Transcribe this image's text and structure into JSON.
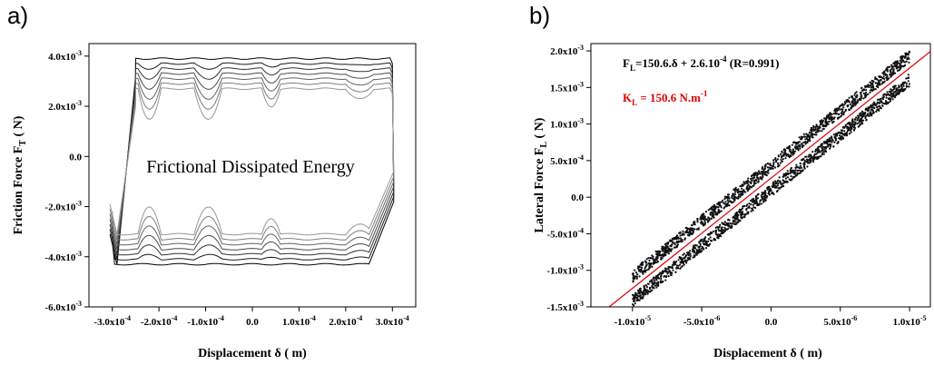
{
  "chart_data": [
    {
      "panel_label": "a)",
      "type": "line",
      "xlabel": "Displacement δ (   m)",
      "ylabel": "Friction Force F",
      "ylabel_sub": "T",
      "ylabel_suffix": " (    N)",
      "xlim": [
        -0.00035,
        0.00035
      ],
      "ylim": [
        -0.006,
        0.0045
      ],
      "x_ticks": [
        -0.0003,
        -0.0002,
        -0.0001,
        0,
        0.0001,
        0.0002,
        0.0003
      ],
      "x_tick_labels": [
        {
          "mant": "-3.0x10",
          "exp": "-4"
        },
        {
          "mant": "-2.0x10",
          "exp": "-4"
        },
        {
          "mant": "-1.0x10",
          "exp": "-4"
        },
        {
          "mant": "0.0",
          "exp": ""
        },
        {
          "mant": "1.0x10",
          "exp": "-4"
        },
        {
          "mant": "2.0x10",
          "exp": "-4"
        },
        {
          "mant": "3.0x10",
          "exp": "-4"
        }
      ],
      "y_ticks": [
        0.004,
        0.002,
        0,
        -0.002,
        -0.004,
        -0.006
      ],
      "y_tick_labels": [
        {
          "mant": "4.0x10",
          "exp": "-3"
        },
        {
          "mant": "2.0x10",
          "exp": "-3"
        },
        {
          "mant": "0.0",
          "exp": ""
        },
        {
          "mant": "-2.0x10",
          "exp": "-3"
        },
        {
          "mant": "-4.0x10",
          "exp": "-3"
        },
        {
          "mant": "-6.0x10",
          "exp": "-3"
        }
      ],
      "annotation": "Frictional Dissipated Energy",
      "loops": [
        {
          "upper_level": 0.0039,
          "lower_level": -0.0043
        },
        {
          "upper_level": 0.0037,
          "lower_level": -0.0041
        },
        {
          "upper_level": 0.0035,
          "lower_level": -0.0039
        },
        {
          "upper_level": 0.0033,
          "lower_level": -0.0037
        },
        {
          "upper_level": 0.0031,
          "lower_level": -0.0035
        },
        {
          "upper_level": 0.0029,
          "lower_level": -0.0033
        },
        {
          "upper_level": 0.0027,
          "lower_level": -0.0031
        }
      ]
    },
    {
      "panel_label": "b)",
      "type": "scatter",
      "xlabel": "Displacement δ (   m)",
      "ylabel": "Lateral Force F",
      "ylabel_sub": "L",
      "ylabel_suffix": " (    N)",
      "xlim": [
        -1.3e-05,
        1.15e-05
      ],
      "ylim": [
        -0.0015,
        0.0021
      ],
      "x_ticks": [
        -1e-05,
        -5e-06,
        0,
        5e-06,
        1e-05
      ],
      "x_tick_labels": [
        {
          "mant": "-1.0x10",
          "exp": "-5"
        },
        {
          "mant": "-5.0x10",
          "exp": "-6"
        },
        {
          "mant": "0.0",
          "exp": ""
        },
        {
          "mant": "5.0x10",
          "exp": "-6"
        },
        {
          "mant": "1.0x10",
          "exp": "-5"
        }
      ],
      "y_ticks": [
        0.002,
        0.0015,
        0.001,
        0.0005,
        0,
        -0.0005,
        -0.001,
        -0.0015
      ],
      "y_tick_labels": [
        {
          "mant": "2.0x10",
          "exp": "-3"
        },
        {
          "mant": "1.5x10",
          "exp": "-3"
        },
        {
          "mant": "1.0x10",
          "exp": "-3"
        },
        {
          "mant": "5.0x10",
          "exp": "-4"
        },
        {
          "mant": "0.0",
          "exp": ""
        },
        {
          "mant": "-5.0x10",
          "exp": "-4"
        },
        {
          "mant": "-1.0x10",
          "exp": "-3"
        },
        {
          "mant": "-1.5x10",
          "exp": "-3"
        }
      ],
      "fit": {
        "slope": 150.6,
        "intercept": 0.00026,
        "R": 0.991,
        "color": "#e00000"
      },
      "equation_text": {
        "a": "F",
        "sub": "L",
        "b": "=150.6.δ + 2.6.10",
        "sup": "-4",
        "c": " (R=0.991)"
      },
      "stiffness_text": {
        "a": "K",
        "sub": "L",
        "b": " = 150.6 N.m",
        "sup": "-1"
      },
      "scatter_points": 2400
    }
  ]
}
